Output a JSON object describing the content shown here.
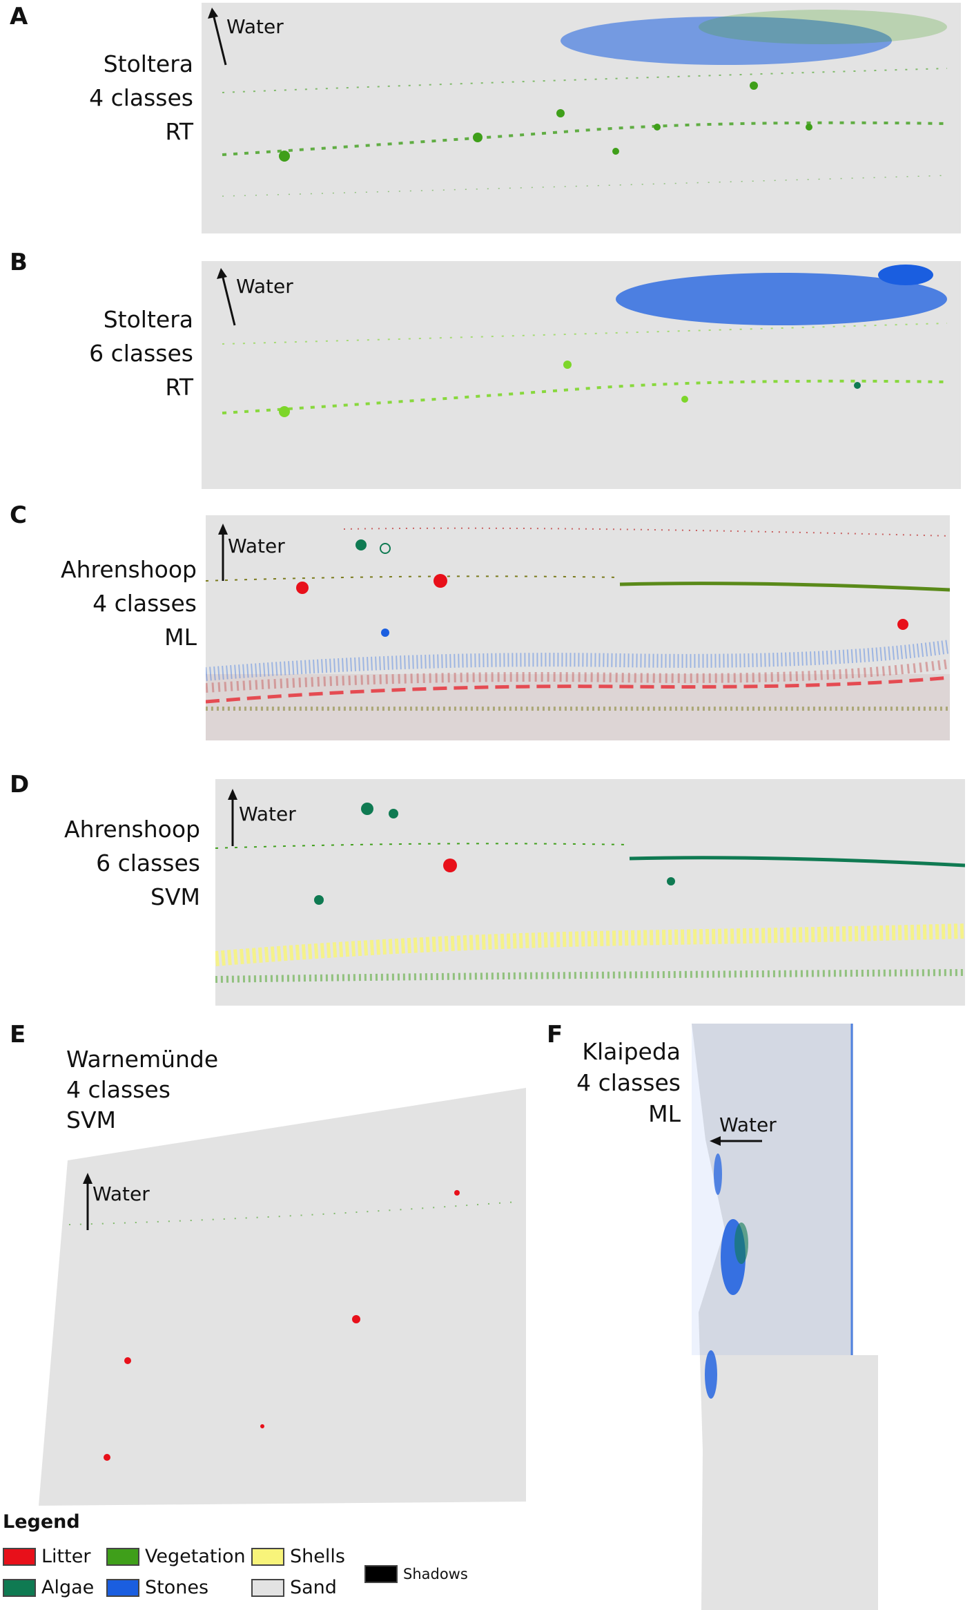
{
  "panels": [
    {
      "letter": "A",
      "lines": [
        "Stoltera",
        "4 classes",
        "RT"
      ],
      "water": "Water"
    },
    {
      "letter": "B",
      "lines": [
        "Stoltera",
        "6 classes",
        "RT"
      ],
      "water": "Water"
    },
    {
      "letter": "C",
      "lines": [
        "Ahrenshoop",
        "4 classes",
        "ML"
      ],
      "water": "Water"
    },
    {
      "letter": "D",
      "lines": [
        "Ahrenshoop",
        "6 classes",
        "SVM"
      ],
      "water": "Water"
    },
    {
      "letter": "E",
      "lines": [
        "Warnemünde",
        "4 classes",
        "SVM"
      ],
      "water": "Water"
    },
    {
      "letter": "F",
      "lines": [
        "Klaipeda",
        "4 classes",
        "ML"
      ],
      "water": "Water"
    }
  ],
  "legend": {
    "title": "Legend",
    "items": [
      {
        "label": "Litter",
        "color": "#e8101a"
      },
      {
        "label": "Vegetation",
        "color": "#3f9f1a"
      },
      {
        "label": "Shells",
        "color": "#f8f47a"
      },
      {
        "label": "Algae",
        "color": "#0f7a52"
      },
      {
        "label": "Stones",
        "color": "#1a5ee0"
      },
      {
        "label": "Sand",
        "color": "#e3e3e3"
      },
      {
        "label": "Shadows",
        "color": "#000000"
      }
    ]
  },
  "colors": {
    "background_map": "#e3e3e3",
    "vegetation": "#3f9f1a",
    "vegetation_light": "#7dd62a",
    "stones": "#1a5ee0",
    "litter": "#e8101a",
    "algae": "#0f7a52",
    "shells": "#f8f47a",
    "brown_veg": "#7a7a1a"
  }
}
